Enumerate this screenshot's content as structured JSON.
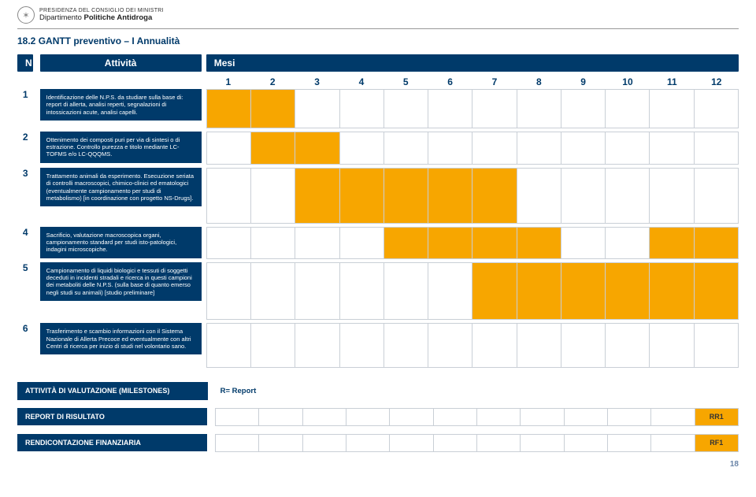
{
  "org": {
    "line1": "PRESIDENZA DEL CONSIGLIO DEI MINISTRI",
    "line2_plain": "Dipartimento ",
    "line2_bold": "Politiche Antidroga"
  },
  "section_title": "18.2 GANTT preventivo – I Annualità",
  "colors": {
    "navy": "#003a6a",
    "orange": "#f7a600",
    "grid": "#c9cfd6",
    "page_num": "#6a85a8"
  },
  "gantt": {
    "header_N": "N",
    "header_Activity": "Attività",
    "header_Months": "Mesi",
    "months": [
      "1",
      "2",
      "3",
      "4",
      "5",
      "6",
      "7",
      "8",
      "9",
      "10",
      "11",
      "12"
    ],
    "rows": [
      {
        "n": "1",
        "text": "Identificazione delle N.P.S. da studiare sulla base di: report di allerta, analisi reperti, segnalazioni di intossicazioni acute, analisi capelli.",
        "fill": [
          1,
          1,
          0,
          0,
          0,
          0,
          0,
          0,
          0,
          0,
          0,
          0
        ]
      },
      {
        "n": "2",
        "text": "Ottenimento dei composti puri per via di sintesi o di estrazione. Controllo purezza e titolo mediante LC-TOFMS e/o LC-QQQMS.",
        "fill": [
          0,
          1,
          1,
          0,
          0,
          0,
          0,
          0,
          0,
          0,
          0,
          0
        ]
      },
      {
        "n": "3",
        "text": "Trattamento animali da esperimento. Esecuzione seriata di controlli macroscopici, chimico-clinici ed ematologici (eventualmente campionamento per studi di metabolismo) [in coordinazione con progetto NS-Drugs].",
        "fill": [
          0,
          0,
          1,
          1,
          1,
          1,
          1,
          0,
          0,
          0,
          0,
          0
        ]
      },
      {
        "n": "4",
        "text": "Sacrificio, valutazione macroscopica organi, campionamento standard per studi isto-patologici, indagini microscopiche.",
        "fill": [
          0,
          0,
          0,
          0,
          1,
          1,
          1,
          1,
          0,
          0,
          1,
          1
        ]
      },
      {
        "n": "5",
        "text": "Campionamento di liquidi biologici e tessuti di soggetti deceduti in incidenti stradali e ricerca in questi campioni dei metaboliti delle N.P.S. (sulla base di quanto emerso negli studi su animali) [studio preliminare]",
        "fill": [
          0,
          0,
          0,
          0,
          0,
          0,
          1,
          1,
          1,
          1,
          1,
          1
        ]
      },
      {
        "n": "6",
        "text": "Trasferimento e scambio informazioni con il Sistema Nazionale di Allerta Precoce ed eventualmente con altri Centri di ricerca per inizio di studi nel volontario sano.",
        "fill": [
          0,
          0,
          0,
          0,
          0,
          0,
          0,
          0,
          0,
          0,
          0,
          0
        ]
      }
    ]
  },
  "milestones": {
    "label": "ATTIVITÀ DI VALUTAZIONE (MILESTONES)",
    "r_report": "R= Report"
  },
  "report_risultato": {
    "label": "REPORT DI RISULTATO",
    "cells": [
      "",
      "",
      "",
      "",
      "",
      "",
      "",
      "",
      "",
      "",
      "",
      "RR1"
    ],
    "highlight_index": 11
  },
  "rendicontazione": {
    "label": "RENDICONTAZIONE FINANZIARIA",
    "cells": [
      "",
      "",
      "",
      "",
      "",
      "",
      "",
      "",
      "",
      "",
      "",
      "RF1"
    ],
    "highlight_index": 11
  },
  "page_number": "18"
}
